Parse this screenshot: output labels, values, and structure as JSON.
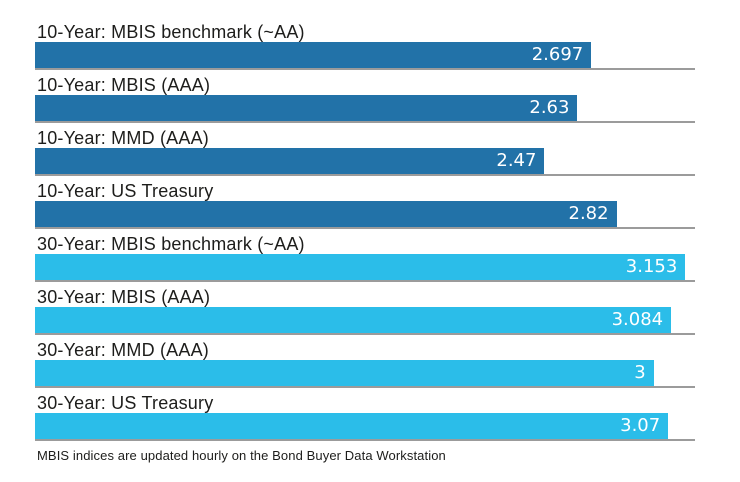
{
  "chart_data": {
    "type": "bar",
    "orientation": "horizontal",
    "title": "",
    "xlabel": "",
    "ylabel": "",
    "xlim": [
      0,
      3.2
    ],
    "grid": false,
    "legend": "none",
    "value_labels_position": "inside-end",
    "groups": {
      "ten_year_color": "#2272a8",
      "thirty_year_color": "#2bbde9"
    },
    "bars": [
      {
        "label": "10-Year: MBIS benchmark (~AA)",
        "value": 2.697,
        "display_value": "2.697",
        "group": "ten_year"
      },
      {
        "label": "10-Year: MBIS (AAA)",
        "value": 2.63,
        "display_value": "2.63",
        "group": "ten_year"
      },
      {
        "label": "10-Year: MMD (AAA)",
        "value": 2.47,
        "display_value": "2.47",
        "group": "ten_year"
      },
      {
        "label": "10-Year: US Treasury",
        "value": 2.82,
        "display_value": "2.82",
        "group": "ten_year"
      },
      {
        "label": "30-Year: MBIS benchmark (~AA)",
        "value": 3.153,
        "display_value": "3.153",
        "group": "thirty_year"
      },
      {
        "label": "30-Year: MBIS (AAA)",
        "value": 3.084,
        "display_value": "3.084",
        "group": "thirty_year"
      },
      {
        "label": "30-Year: MMD (AAA)",
        "value": 3,
        "display_value": "3",
        "group": "thirty_year"
      },
      {
        "label": "30-Year: US Treasury",
        "value": 3.07,
        "display_value": "3.07",
        "group": "thirty_year"
      }
    ],
    "baseline_color": "#9b9b9b",
    "label_color": "#1d1d1b",
    "value_text_color": "#ffffff"
  },
  "footer": {
    "note": "MBIS indices are updated hourly on the Bond Buyer Data Workstation"
  }
}
